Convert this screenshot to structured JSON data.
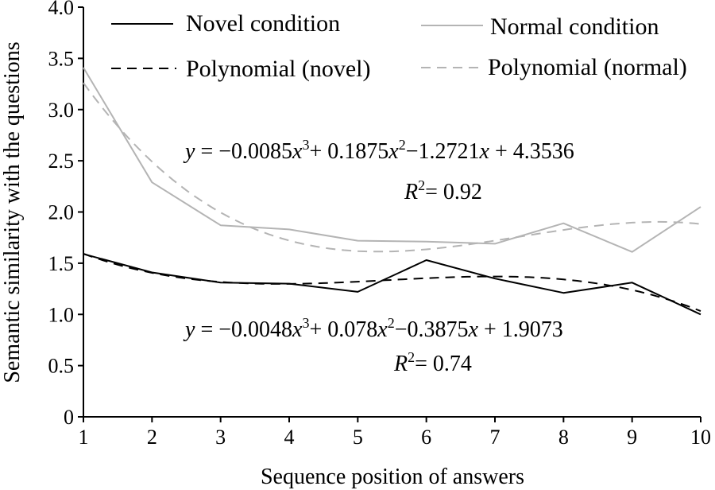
{
  "chart_data": {
    "type": "line",
    "xlabel": "Sequence position of answers",
    "ylabel": "Semantic similarity with the questions",
    "xlim": [
      1,
      10
    ],
    "ylim": [
      0,
      4.0
    ],
    "x": [
      1,
      2,
      3,
      4,
      5,
      6,
      7,
      8,
      9,
      10
    ],
    "x_tick_labels": [
      "1",
      "2",
      "3",
      "4",
      "5",
      "6",
      "7",
      "8",
      "9",
      "10"
    ],
    "y_ticks": [
      0,
      0.5,
      1.0,
      1.5,
      2.0,
      2.5,
      3.0,
      3.5,
      4.0
    ],
    "y_tick_labels": [
      "0",
      "0.5",
      "1.0",
      "1.5",
      "2.0",
      "2.5",
      "3.0",
      "3.5",
      "4.0"
    ],
    "grid": false,
    "legend_position": "top",
    "series": [
      {
        "name": "Novel condition",
        "style": "solid",
        "color": "#000000",
        "values": [
          1.59,
          1.41,
          1.31,
          1.3,
          1.22,
          1.53,
          1.35,
          1.21,
          1.31,
          1.0
        ]
      },
      {
        "name": "Normal condition",
        "style": "solid",
        "color": "#b4b4b4",
        "values": [
          3.41,
          2.29,
          1.87,
          1.83,
          1.72,
          1.71,
          1.69,
          1.89,
          1.61,
          2.05
        ]
      },
      {
        "name": "Polynomial (novel)",
        "style": "dashed",
        "color": "#000000",
        "fit_coefficients": [
          -0.0048,
          0.078,
          -0.3875,
          1.9073
        ]
      },
      {
        "name": "Polynomial (normal)",
        "style": "dashed",
        "color": "#b4b4b4",
        "fit_coefficients": [
          -0.0085,
          0.1875,
          -1.2721,
          4.3536
        ]
      }
    ],
    "annotations": {
      "normal_equation": {
        "y": "y",
        "eq": " = −0.0085",
        "x1": "x",
        "e1": "3",
        "t2": "+ 0.1875",
        "x2": "x",
        "e2": "2",
        "t3": "−1.2721",
        "x3": "x",
        "t4": " + 4.3536",
        "r": "R",
        "r_exp": "2",
        "r_val": "= 0.92"
      },
      "novel_equation": {
        "y": "y",
        "eq": " = −0.0048",
        "x1": "x",
        "e1": "3",
        "t2": "+ 0.078",
        "x2": "x",
        "e2": "2",
        "t3": "−0.3875",
        "x3": "x",
        "t4": " + 1.9073",
        "r": "R",
        "r_exp": "2",
        "r_val": "= 0.74"
      }
    }
  }
}
